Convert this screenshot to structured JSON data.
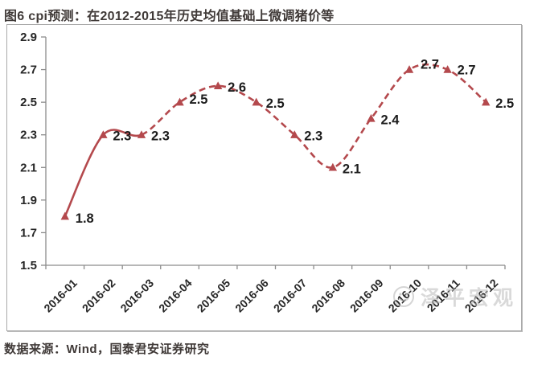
{
  "page": {
    "title": "图6 cpi预测：在2012-2015年历史均值基础上微调猪价等",
    "source": "数据来源：Wind，国泰君安证券研究"
  },
  "watermark": {
    "icon": "smiley-face-icon",
    "text": "泽平宏观"
  },
  "colors": {
    "line": "#b4494d",
    "data_label": "#1c1c1c",
    "axis": "#8c8c8c",
    "tick_label": "#262626",
    "title_text": "#403a38"
  },
  "chart_data": {
    "type": "line",
    "title": "cpi预测",
    "x": [
      "2016-01",
      "2016-02",
      "2016-03",
      "2016-04",
      "2016-05",
      "2016-06",
      "2016-07",
      "2016-08",
      "2016-09",
      "2016-10",
      "2016-11",
      "2016-12"
    ],
    "series": [
      {
        "name": "cpi预测",
        "values": [
          1.8,
          2.3,
          2.3,
          2.5,
          2.6,
          2.5,
          2.3,
          2.1,
          2.4,
          2.7,
          2.7,
          2.5
        ]
      }
    ],
    "data_labels": [
      "1.8",
      "2.3",
      "2.3",
      "2.5",
      "2.6",
      "2.5",
      "2.3",
      "2.1",
      "2.4",
      "2.7",
      "2.7",
      "2.5"
    ],
    "ylim": [
      1.5,
      2.9
    ],
    "y_ticks": [
      "1.5",
      "1.7",
      "1.9",
      "2.1",
      "2.3",
      "2.5",
      "2.7",
      "2.9"
    ],
    "solid_until_index": 2,
    "style_note": "solid segment = actual (Jan-Mar), dashed segment = forecast (Mar-Dec)",
    "marker": "triangle",
    "smooth": true,
    "grid": false,
    "legend": "none"
  }
}
